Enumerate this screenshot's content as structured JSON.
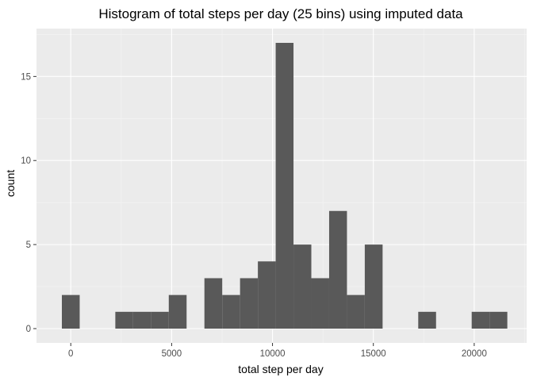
{
  "chart_data": {
    "type": "bar",
    "title": "Histogram of total steps per day (25 bins) using imputed data",
    "xlabel": "total step per day",
    "ylabel": "count",
    "x_ticks": [
      0,
      5000,
      10000,
      15000,
      20000
    ],
    "y_ticks": [
      0,
      5,
      10,
      15
    ],
    "xlim": [
      -1700,
      22600
    ],
    "ylim": [
      -0.85,
      17.85
    ],
    "bin_width": 883.33,
    "bins": [
      {
        "center": 0,
        "count": 2
      },
      {
        "center": 883.33,
        "count": 0
      },
      {
        "center": 1766.67,
        "count": 0
      },
      {
        "center": 2650,
        "count": 1
      },
      {
        "center": 3533.33,
        "count": 1
      },
      {
        "center": 4416.67,
        "count": 1
      },
      {
        "center": 5300,
        "count": 2
      },
      {
        "center": 6183.33,
        "count": 0
      },
      {
        "center": 7066.67,
        "count": 3
      },
      {
        "center": 7950,
        "count": 2
      },
      {
        "center": 8833.33,
        "count": 3
      },
      {
        "center": 9716.67,
        "count": 4
      },
      {
        "center": 10600,
        "count": 17
      },
      {
        "center": 11483.33,
        "count": 5
      },
      {
        "center": 12366.67,
        "count": 3
      },
      {
        "center": 13250,
        "count": 7
      },
      {
        "center": 14133.33,
        "count": 2
      },
      {
        "center": 15016.67,
        "count": 5
      },
      {
        "center": 15900,
        "count": 0
      },
      {
        "center": 16783.33,
        "count": 0
      },
      {
        "center": 17666.67,
        "count": 1
      },
      {
        "center": 18550,
        "count": 0
      },
      {
        "center": 19433.33,
        "count": 0
      },
      {
        "center": 20316.67,
        "count": 1
      },
      {
        "center": 21200,
        "count": 1
      }
    ],
    "grid": true,
    "colors": {
      "panel_background": "#ebebeb",
      "grid_major": "#ffffff",
      "grid_minor": "#f5f5f5",
      "bar_fill": "#595959",
      "tick_mark": "#333333"
    }
  }
}
